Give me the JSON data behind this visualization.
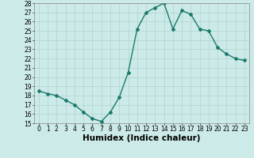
{
  "x": [
    0,
    1,
    2,
    3,
    4,
    5,
    6,
    7,
    8,
    9,
    10,
    11,
    12,
    13,
    14,
    15,
    16,
    17,
    18,
    19,
    20,
    21,
    22,
    23
  ],
  "y": [
    18.5,
    18.2,
    18.0,
    17.5,
    17.0,
    16.2,
    15.5,
    15.2,
    16.2,
    17.8,
    20.5,
    25.2,
    27.0,
    27.5,
    28.0,
    25.2,
    27.2,
    26.8,
    25.2,
    25.0,
    23.2,
    22.5,
    22.0,
    21.8
  ],
  "xlabel": "Humidex (Indice chaleur)",
  "ylim": [
    15,
    28
  ],
  "yticks": [
    15,
    16,
    17,
    18,
    19,
    20,
    21,
    22,
    23,
    24,
    25,
    26,
    27,
    28
  ],
  "xticks": [
    0,
    1,
    2,
    3,
    4,
    5,
    6,
    7,
    8,
    9,
    10,
    11,
    12,
    13,
    14,
    15,
    16,
    17,
    18,
    19,
    20,
    21,
    22,
    23
  ],
  "line_color": "#1a7a6e",
  "bg_color": "#cceae7",
  "grid_color": "#b0d4d0",
  "tick_label_fontsize": 5.5,
  "xlabel_fontsize": 7.5
}
